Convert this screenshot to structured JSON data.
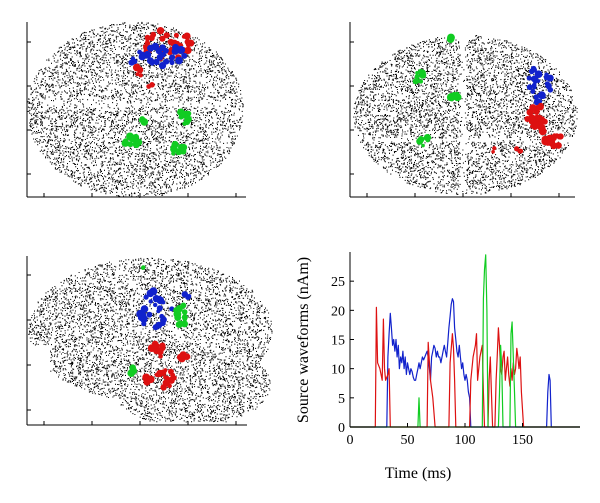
{
  "figure": {
    "panels": [
      {
        "view": "top",
        "dot_color": "#000000"
      },
      {
        "view": "front",
        "dot_color": "#000000"
      },
      {
        "view": "side",
        "dot_color": "#000000"
      }
    ],
    "source_colors": {
      "red": "#dd1111",
      "blue": "#1122cc",
      "green": "#11cc22"
    }
  },
  "chart_data": {
    "type": "line",
    "xlabel": "Time (ms)",
    "ylabel": "Source waveforms (nAm)",
    "xlim": [
      0,
      200
    ],
    "ylim": [
      0,
      30
    ],
    "xticks": [
      0,
      50,
      100,
      150
    ],
    "yticks": [
      0,
      5,
      10,
      15,
      20,
      25
    ],
    "grid": false,
    "legend": "none",
    "series": [
      {
        "color": "#dd1111",
        "points": [
          [
            0,
            0
          ],
          [
            22,
            0
          ],
          [
            23,
            20.5
          ],
          [
            24,
            11
          ],
          [
            26,
            10
          ],
          [
            28,
            8
          ],
          [
            29,
            18.5
          ],
          [
            30,
            10
          ],
          [
            31,
            8
          ],
          [
            33,
            9
          ],
          [
            34,
            10
          ],
          [
            35,
            0
          ],
          [
            67,
            0
          ],
          [
            68,
            14.5
          ],
          [
            70,
            8
          ],
          [
            72,
            5
          ],
          [
            74,
            0
          ],
          [
            86,
            0
          ],
          [
            87,
            11
          ],
          [
            89,
            16
          ],
          [
            90,
            13.5
          ],
          [
            91,
            8
          ],
          [
            92,
            0
          ],
          [
            104,
            0
          ],
          [
            105,
            8
          ],
          [
            107,
            12
          ],
          [
            109,
            14
          ],
          [
            110,
            16
          ],
          [
            111,
            8
          ],
          [
            113,
            12
          ],
          [
            115,
            14
          ],
          [
            116,
            6
          ],
          [
            117,
            0
          ],
          [
            120,
            0
          ],
          [
            121,
            8
          ],
          [
            122,
            12
          ],
          [
            123,
            6
          ],
          [
            124,
            0
          ],
          [
            126,
            0
          ],
          [
            127,
            8
          ],
          [
            128,
            12
          ],
          [
            129,
            17
          ],
          [
            130,
            14
          ],
          [
            131,
            10
          ],
          [
            132,
            9
          ],
          [
            133,
            12
          ],
          [
            134,
            13
          ],
          [
            135,
            8
          ],
          [
            136,
            10
          ],
          [
            137,
            12
          ],
          [
            138,
            9
          ],
          [
            139,
            7
          ],
          [
            140,
            10
          ],
          [
            141,
            8
          ],
          [
            142,
            11
          ],
          [
            143,
            9
          ],
          [
            144,
            10
          ],
          [
            145,
            13.5
          ],
          [
            146,
            12
          ],
          [
            147,
            10
          ],
          [
            148,
            12
          ],
          [
            149,
            6
          ],
          [
            150,
            3
          ],
          [
            151,
            0
          ],
          [
            200,
            0
          ]
        ]
      },
      {
        "color": "#1122cc",
        "points": [
          [
            0,
            0
          ],
          [
            32,
            0
          ],
          [
            33,
            12
          ],
          [
            34,
            16
          ],
          [
            35,
            19.5
          ],
          [
            36,
            17
          ],
          [
            37,
            14
          ],
          [
            38,
            15
          ],
          [
            39,
            13
          ],
          [
            40,
            15
          ],
          [
            41,
            12
          ],
          [
            42,
            14
          ],
          [
            43,
            10
          ],
          [
            44,
            12
          ],
          [
            45,
            11
          ],
          [
            46,
            13
          ],
          [
            47,
            10
          ],
          [
            48,
            12
          ],
          [
            49,
            9
          ],
          [
            50,
            11
          ],
          [
            51,
            10
          ],
          [
            52,
            9
          ],
          [
            53,
            10
          ],
          [
            54,
            9.5
          ],
          [
            55,
            8.5
          ],
          [
            56,
            8
          ],
          [
            57,
            8
          ],
          [
            58,
            9
          ],
          [
            59,
            10
          ],
          [
            60,
            11
          ],
          [
            61,
            10
          ],
          [
            62,
            11
          ],
          [
            63,
            12
          ],
          [
            64,
            11.5
          ],
          [
            65,
            12
          ],
          [
            66,
            12.5
          ],
          [
            67,
            13
          ],
          [
            68,
            12
          ],
          [
            69,
            10
          ],
          [
            70,
            8
          ],
          [
            71,
            12
          ],
          [
            72,
            13
          ],
          [
            73,
            14
          ],
          [
            74,
            13.5
          ],
          [
            75,
            12
          ],
          [
            76,
            13
          ],
          [
            77,
            12
          ],
          [
            78,
            12
          ],
          [
            79,
            11
          ],
          [
            80,
            12
          ],
          [
            81,
            13
          ],
          [
            82,
            14
          ],
          [
            83,
            13
          ],
          [
            84,
            12
          ],
          [
            85,
            14.5
          ],
          [
            86,
            17
          ],
          [
            87,
            19
          ],
          [
            88,
            21
          ],
          [
            89,
            22
          ],
          [
            90,
            21.5
          ],
          [
            91,
            17
          ],
          [
            92,
            15
          ],
          [
            93,
            13
          ],
          [
            94,
            12
          ],
          [
            95,
            14
          ],
          [
            96,
            12
          ],
          [
            97,
            10
          ],
          [
            98,
            11
          ],
          [
            99,
            9
          ],
          [
            100,
            8
          ],
          [
            101,
            9
          ],
          [
            102,
            8
          ],
          [
            103,
            6
          ],
          [
            104,
            5
          ],
          [
            105,
            0
          ],
          [
            171,
            0
          ],
          [
            172,
            6
          ],
          [
            173,
            9
          ],
          [
            174,
            8
          ],
          [
            175,
            0
          ],
          [
            200,
            0
          ]
        ]
      },
      {
        "color": "#11cc22",
        "points": [
          [
            0,
            0
          ],
          [
            59,
            0
          ],
          [
            60,
            5
          ],
          [
            61,
            0
          ],
          [
            115,
            0
          ],
          [
            116,
            22
          ],
          [
            117,
            27
          ],
          [
            118,
            29.5
          ],
          [
            119,
            20
          ],
          [
            120,
            0
          ],
          [
            129,
            0
          ],
          [
            130,
            6
          ],
          [
            131,
            14
          ],
          [
            132,
            10
          ],
          [
            133,
            0
          ],
          [
            139,
            0
          ],
          [
            140,
            16
          ],
          [
            141,
            18
          ],
          [
            142,
            12
          ],
          [
            143,
            6
          ],
          [
            144,
            0
          ],
          [
            200,
            0
          ]
        ]
      }
    ]
  }
}
